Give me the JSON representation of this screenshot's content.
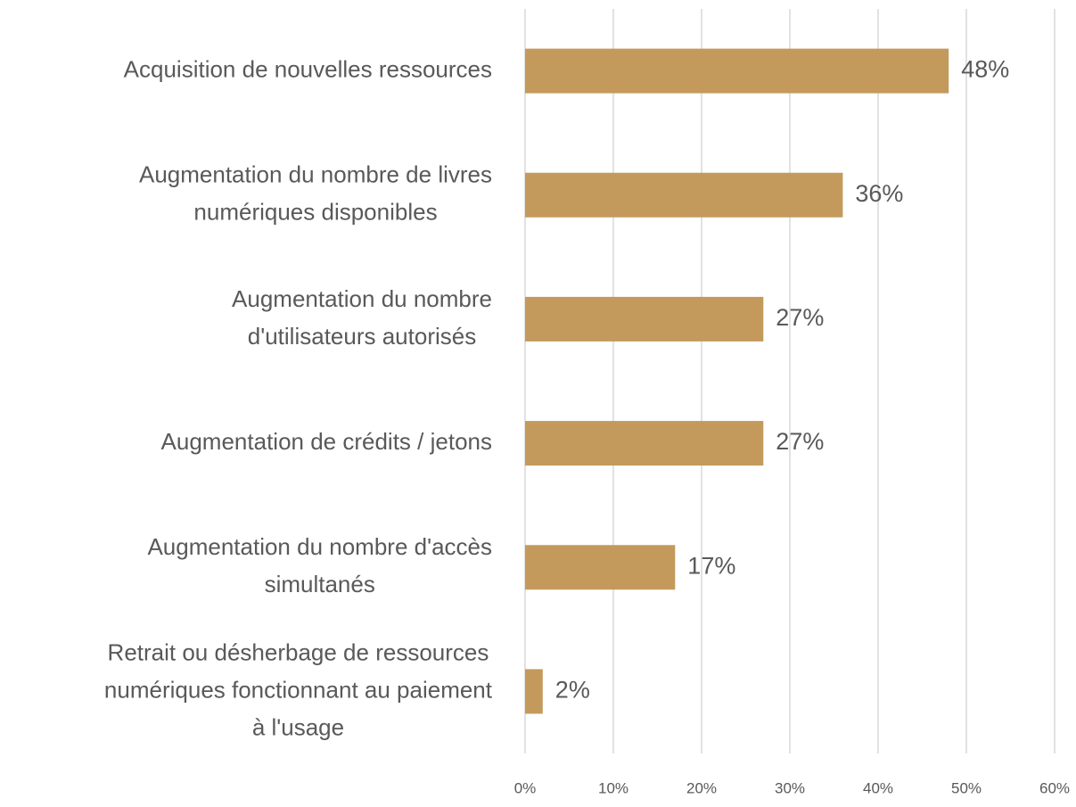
{
  "chart_data": {
    "type": "bar",
    "orientation": "horizontal",
    "categories": [
      [
        "Acquisition de nouvelles ressources"
      ],
      [
        "Augmentation du nombre de livres",
        "numériques disponibles"
      ],
      [
        "Augmentation du nombre",
        "d'utilisateurs autorisés"
      ],
      [
        "Augmentation de crédits / jetons"
      ],
      [
        "Augmentation du nombre d'accès",
        "simultanés"
      ],
      [
        "Retrait ou désherbage de ressources",
        "numériques fonctionnant au paiement",
        "à l'usage"
      ]
    ],
    "values": [
      48,
      36,
      27,
      27,
      17,
      2
    ],
    "value_labels": [
      "48%",
      "36%",
      "27%",
      "27%",
      "17%",
      "2%"
    ],
    "color": "#c39a5c",
    "xlim": [
      0,
      60
    ],
    "xticks": [
      {
        "value": 0,
        "label": "0%"
      },
      {
        "value": 10,
        "label": "10%"
      },
      {
        "value": 20,
        "label": "20%"
      },
      {
        "value": 30,
        "label": "30%"
      },
      {
        "value": 40,
        "label": "40%"
      },
      {
        "value": 50,
        "label": "50%"
      },
      {
        "value": 60,
        "label": "60%"
      }
    ],
    "grid": true
  }
}
